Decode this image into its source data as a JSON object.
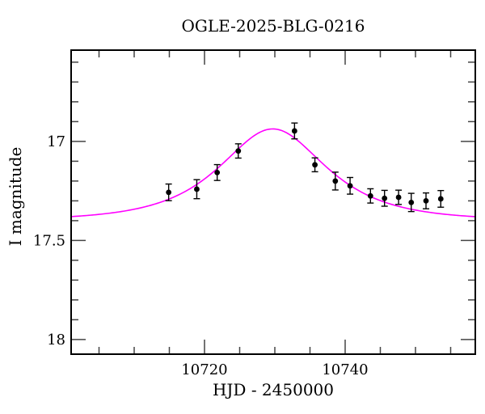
{
  "chart_data": {
    "type": "scatter",
    "title": "OGLE-2025-BLG-0216",
    "xlabel": "HJD - 2450000",
    "ylabel": "I magnitude",
    "x_axis": {
      "lim": [
        10701.03,
        10758.51
      ],
      "major_ticks": [
        10720,
        10740
      ],
      "major_tick_labels": [
        "10720",
        "10740"
      ],
      "minor_tick_step": 5
    },
    "y_axis": {
      "lim": [
        16.539,
        18.074
      ],
      "inverted": true,
      "major_ticks": [
        17,
        17.5,
        18
      ],
      "major_tick_labels": [
        "17",
        "17.5",
        "18"
      ],
      "minor_tick_step": 0.1
    },
    "points": [
      {
        "t": 10714.9,
        "mag": 17.257,
        "err": 0.042
      },
      {
        "t": 10718.9,
        "mag": 17.241,
        "err": 0.048
      },
      {
        "t": 10721.8,
        "mag": 17.157,
        "err": 0.04
      },
      {
        "t": 10724.8,
        "mag": 17.048,
        "err": 0.036
      },
      {
        "t": 10732.8,
        "mag": 16.947,
        "err": 0.04
      },
      {
        "t": 10735.7,
        "mag": 17.118,
        "err": 0.035
      },
      {
        "t": 10738.6,
        "mag": 17.2,
        "err": 0.045
      },
      {
        "t": 10740.7,
        "mag": 17.224,
        "err": 0.042
      },
      {
        "t": 10743.6,
        "mag": 17.275,
        "err": 0.036
      },
      {
        "t": 10745.6,
        "mag": 17.287,
        "err": 0.04
      },
      {
        "t": 10747.6,
        "mag": 17.282,
        "err": 0.036
      },
      {
        "t": 10749.4,
        "mag": 17.308,
        "err": 0.046
      },
      {
        "t": 10751.5,
        "mag": 17.3,
        "err": 0.04
      },
      {
        "t": 10753.6,
        "mag": 17.29,
        "err": 0.042
      }
    ],
    "model_curve": {
      "model": "paczynski",
      "t0": 10729.7,
      "tE": 10.3,
      "u0": 0.8,
      "baseline_mag": 17.4,
      "peak_mag": 16.94,
      "color": "#ff00ff"
    },
    "colors": {
      "background": "#ffffff",
      "frame": "#000000",
      "data_points": "#000000",
      "curve": "#ff00ff"
    }
  }
}
